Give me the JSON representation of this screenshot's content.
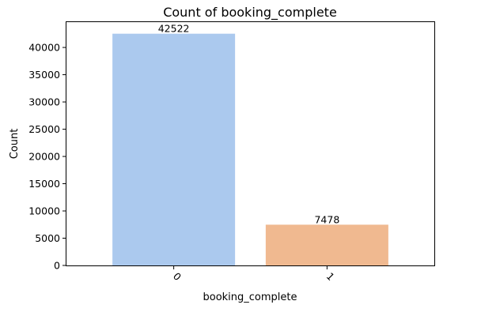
{
  "chart_data": {
    "type": "bar",
    "title": "Count of booking_complete",
    "xlabel": "booking_complete",
    "ylabel": "Count",
    "categories": [
      "0",
      "1"
    ],
    "values": [
      42522,
      7478
    ],
    "data_labels": [
      "42522",
      "7478"
    ],
    "colors": [
      "#abc9ee",
      "#f0b990"
    ],
    "ylim": [
      0,
      44649
    ],
    "yticks": [
      0,
      5000,
      10000,
      15000,
      20000,
      25000,
      30000,
      35000,
      40000
    ],
    "ytick_labels": [
      "0",
      "5000",
      "10000",
      "15000",
      "20000",
      "25000",
      "30000",
      "35000",
      "40000"
    ],
    "xtick_rotation_deg": 45,
    "grid": false,
    "legend": "none"
  }
}
